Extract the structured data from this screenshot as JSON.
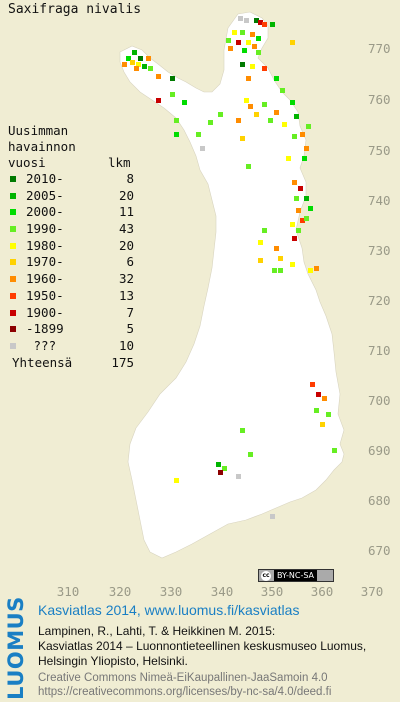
{
  "title": "Saxifraga nivalis",
  "legend": {
    "header": [
      "Uusimman",
      "havainnon",
      "vuosi"
    ],
    "count_header": "lkm",
    "rows": [
      {
        "label": "2010-",
        "count": "8",
        "color": "#007a00"
      },
      {
        "label": "2005-",
        "count": "20",
        "color": "#00b400"
      },
      {
        "label": "2000-",
        "count": "11",
        "color": "#00dc00"
      },
      {
        "label": "1990-",
        "count": "43",
        "color": "#66ee22"
      },
      {
        "label": "1980-",
        "count": "20",
        "color": "#ffff00"
      },
      {
        "label": "1970-",
        "count": "6",
        "color": "#ffd200"
      },
      {
        "label": "1960-",
        "count": "32",
        "color": "#ff8c00"
      },
      {
        "label": "1950-",
        "count": "13",
        "color": "#ff3c00"
      },
      {
        "label": "1900-",
        "count": "7",
        "color": "#c80000"
      },
      {
        "label": "-1899",
        "count": "5",
        "color": "#8c0000"
      },
      {
        "label": " ???",
        "count": "10",
        "color": "#c8c8c8"
      }
    ],
    "total_label": "Yhteensä",
    "total_count": "175"
  },
  "y_axis_labels": [
    "770",
    "760",
    "750",
    "740",
    "730",
    "720",
    "710",
    "700",
    "690",
    "680",
    "670"
  ],
  "x_axis_labels": [
    "310",
    "320",
    "330",
    "340",
    "350",
    "360",
    "370"
  ],
  "license_badge": {
    "cc": "cc",
    "text": "BY-NC-SA"
  },
  "brand": "LUOMUS",
  "atlas_line": "Kasviatlas 2014, www.luomus.fi/kasviatlas",
  "citation": [
    "Lampinen, R., Lahti, T. & Heikkinen M. 2015:",
    "Kasviatlas 2014 – Luonnontieteellinen keskusmuseo Luomus,",
    "Helsingin Yliopisto, Helsinki."
  ],
  "license_lines": [
    "Creative Commons Nimeä-EiKaupallinen-JaaSamoin 4.0",
    "https://creativecommons.org/licenses/by-nc-sa/4.0/deed.fi"
  ],
  "colors": {
    "background": "#f0edd3",
    "land": "#ffffff",
    "grid_label": "#9a9a88",
    "brand": "#1a7fc4"
  }
}
